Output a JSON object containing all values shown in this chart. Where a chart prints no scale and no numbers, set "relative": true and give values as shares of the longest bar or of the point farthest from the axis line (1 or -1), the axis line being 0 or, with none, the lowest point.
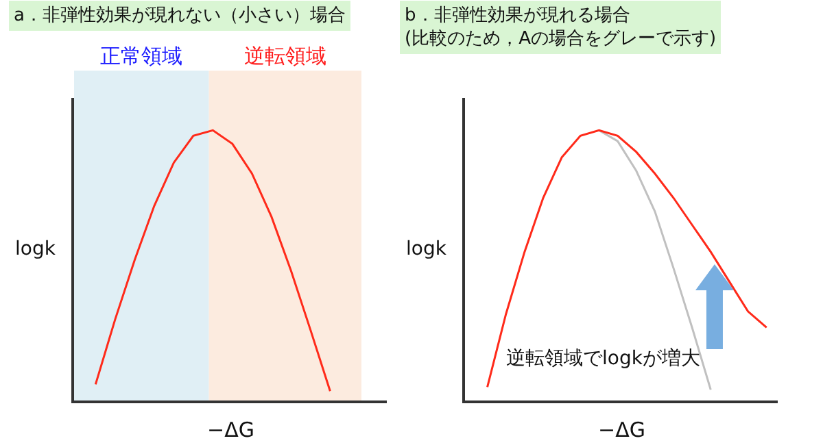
{
  "chart_data": [
    {
      "type": "line",
      "title": "a．非弾性効果が現れない（小さい）場合",
      "xlabel": "−ΔG",
      "ylabel": "logk",
      "relative": true,
      "grid": false,
      "categories": [
        null,
        null,
        null,
        null,
        null,
        null,
        null,
        null,
        null,
        null,
        null,
        null,
        null
      ],
      "annotations": [
        "正常領域",
        "逆転領域"
      ],
      "series": [
        {
          "color": "#ff2a1a",
          "values": [
            0.06,
            0.3,
            0.52,
            0.72,
            0.88,
            0.98,
            1.0,
            0.95,
            0.84,
            0.68,
            0.48,
            0.26,
            0.035
          ]
        }
      ]
    },
    {
      "type": "line",
      "title": "b．非弾性効果が現れる場合\n(比較のため，Aの場合をグレーで示す)",
      "xlabel": "−ΔG",
      "ylabel": "logk",
      "relative": true,
      "grid": false,
      "categories": [
        null,
        null,
        null,
        null,
        null,
        null,
        null,
        null,
        null,
        null,
        null,
        null,
        null,
        null,
        null,
        null
      ],
      "annotations": [
        "逆転領域でlogkが増大"
      ],
      "series": [
        {
          "color": "#c0c0c0",
          "values": [
            null,
            null,
            null,
            null,
            null,
            null,
            1.0,
            0.96,
            0.85,
            0.7,
            0.49,
            0.27,
            0.04,
            null,
            null,
            null
          ]
        },
        {
          "color": "#ff2a1a",
          "values": [
            0.05,
            0.32,
            0.55,
            0.75,
            0.9,
            0.98,
            1.0,
            0.98,
            0.92,
            0.84,
            0.75,
            0.65,
            0.55,
            0.44,
            0.33,
            0.27
          ]
        }
      ]
    }
  ]
}
